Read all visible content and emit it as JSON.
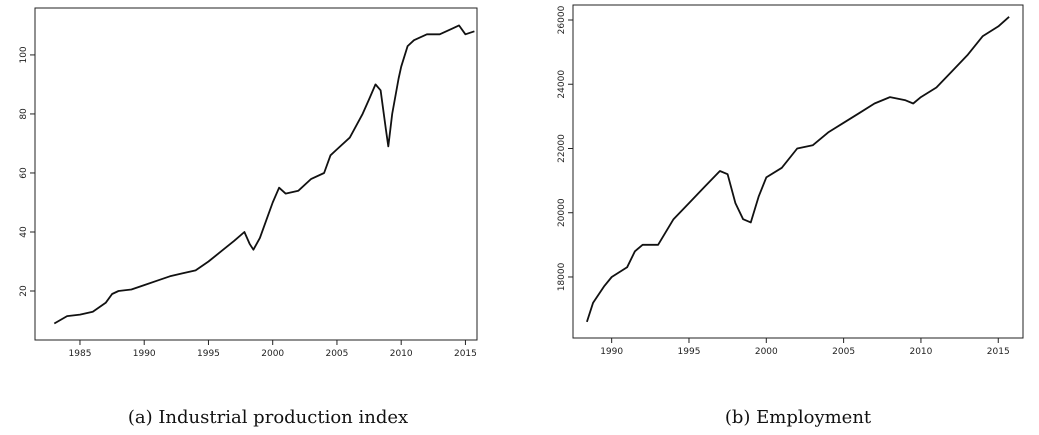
{
  "chart_data": [
    {
      "type": "line",
      "title": "(a) Industrial production index",
      "x": [
        1983,
        1984,
        1985,
        1986,
        1987,
        1987.5,
        1988,
        1989,
        1990,
        1991,
        1992,
        1993,
        1994,
        1995,
        1996,
        1997,
        1997.8,
        1998.2,
        1998.5,
        1999,
        1999.5,
        2000,
        2000.5,
        2001,
        2002,
        2003,
        2004,
        2004.5,
        2005,
        2006,
        2007,
        2007.5,
        2008,
        2008.4,
        2008.8,
        2009,
        2009.3,
        2009.8,
        2010,
        2010.5,
        2011,
        2012,
        2013,
        2014,
        2014.5,
        2015,
        2015.7
      ],
      "series": [
        {
          "color": "#111111",
          "values": [
            9,
            11.5,
            12,
            13,
            16,
            19,
            20,
            20.5,
            22,
            23.5,
            25,
            26,
            27,
            30,
            33.5,
            37,
            40,
            36,
            34,
            38,
            44,
            50,
            55,
            53,
            54,
            58,
            60,
            66,
            68,
            72,
            80,
            85,
            90,
            88,
            75,
            69,
            80,
            92,
            96,
            103,
            105,
            107,
            107,
            109,
            110,
            107,
            108
          ]
        }
      ],
      "xlim": [
        1981.5,
        2015.9
      ],
      "xticks": [
        1985,
        1990,
        1995,
        2000,
        2005,
        2010,
        2015
      ],
      "ylim": [
        3.4,
        115.9
      ],
      "yticks": [
        20,
        40,
        60,
        80,
        100
      ]
    },
    {
      "type": "line",
      "title": "(b) Employment",
      "x": [
        1988.4,
        1988.8,
        1989.5,
        1990,
        1991,
        1991.5,
        1992,
        1993,
        1994,
        1995,
        1996,
        1997,
        1997.5,
        1998,
        1998.5,
        1999,
        1999.5,
        2000,
        2001,
        2002,
        2003,
        2004,
        2005,
        2006,
        2007,
        2008,
        2009,
        2009.5,
        2010,
        2011,
        2012,
        2013,
        2014,
        2015,
        2015.7
      ],
      "series": [
        {
          "color": "#111111",
          "values": [
            16600,
            17200,
            17700,
            18000,
            18300,
            18800,
            19000,
            19000,
            19800,
            20300,
            20800,
            21300,
            21200,
            20300,
            19800,
            19700,
            20500,
            21100,
            21400,
            22000,
            22100,
            22500,
            22800,
            23100,
            23400,
            23600,
            23500,
            23400,
            23600,
            23900,
            24400,
            24900,
            25500,
            25800,
            26100
          ]
        }
      ],
      "xlim": [
        1987.5,
        2016.6
      ],
      "xticks": [
        1990,
        1995,
        2000,
        2005,
        2010,
        2015
      ],
      "ylim": [
        16100,
        26467
      ],
      "yticks": [
        18000,
        20000,
        22000,
        24000,
        26000
      ]
    }
  ]
}
